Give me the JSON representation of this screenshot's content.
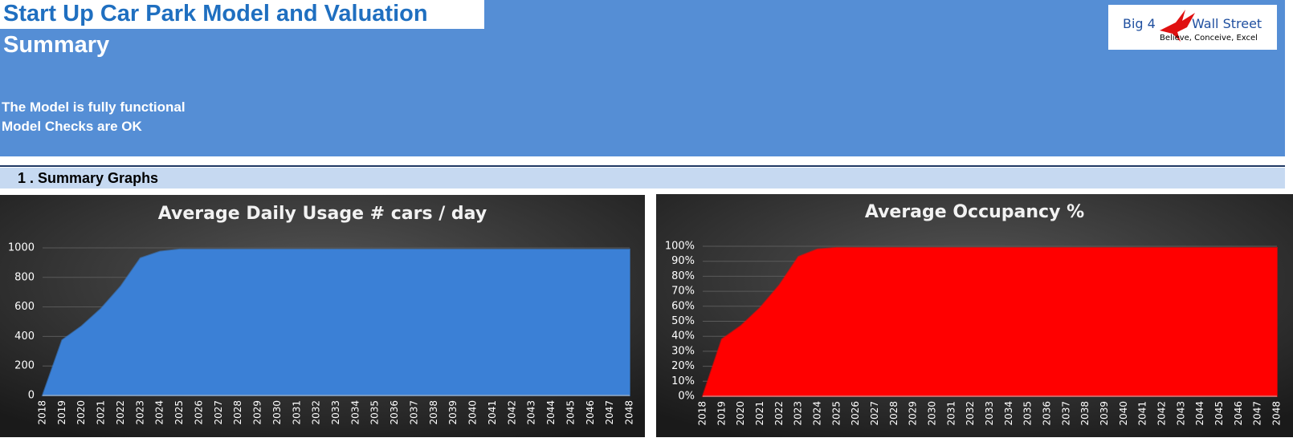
{
  "header": {
    "title": "Start Up Car Park Model and Valuation",
    "subtitle": "Summary",
    "status": [
      "The Model is fully functional",
      "Model Checks are OK"
    ],
    "logo": {
      "brand_left": "Big 4",
      "brand_right": "Wall Street",
      "tagline": "Believe, Conceive, Excel"
    }
  },
  "section": {
    "title": "1 . Summary Graphs"
  },
  "chart_data": [
    {
      "type": "area",
      "title": "Average Daily Usage # cars / day",
      "x": [
        2018,
        2019,
        2020,
        2021,
        2022,
        2023,
        2024,
        2025,
        2026,
        2027,
        2028,
        2029,
        2030,
        2031,
        2032,
        2033,
        2034,
        2035,
        2036,
        2037,
        2038,
        2039,
        2040,
        2041,
        2042,
        2043,
        2044,
        2045,
        2046,
        2047,
        2048
      ],
      "xlim": [
        2018,
        2048
      ],
      "values": [
        0,
        375,
        470,
        590,
        740,
        930,
        975,
        990,
        990,
        990,
        990,
        990,
        990,
        990,
        990,
        990,
        990,
        990,
        990,
        990,
        990,
        990,
        990,
        990,
        990,
        990,
        990,
        990,
        990,
        990,
        990
      ],
      "color": "#3b80d6",
      "ylim": [
        0,
        1000
      ],
      "yticks": [
        0,
        200,
        400,
        600,
        800,
        1000
      ],
      "grid": true
    },
    {
      "type": "area",
      "title": "Average Occupancy %",
      "x": [
        2018,
        2019,
        2020,
        2021,
        2022,
        2023,
        2024,
        2025,
        2026,
        2027,
        2028,
        2029,
        2030,
        2031,
        2032,
        2033,
        2034,
        2035,
        2036,
        2037,
        2038,
        2039,
        2040,
        2041,
        2042,
        2043,
        2044,
        2045,
        2046,
        2047,
        2048
      ],
      "xlim": [
        2018,
        2048
      ],
      "values": [
        0,
        38,
        47,
        59,
        74,
        93,
        98,
        99,
        99,
        99,
        99,
        99,
        99,
        99,
        99,
        99,
        99,
        99,
        99,
        99,
        99,
        99,
        99,
        99,
        99,
        99,
        99,
        99,
        99,
        99,
        99
      ],
      "color": "#ff0000",
      "ylim": [
        0,
        100
      ],
      "yticks": [
        {
          "value": 0,
          "label": "0%"
        },
        {
          "value": 10,
          "label": "10%"
        },
        {
          "value": 20,
          "label": "20%"
        },
        {
          "value": 30,
          "label": "30%"
        },
        {
          "value": 40,
          "label": "40%"
        },
        {
          "value": 50,
          "label": "50%"
        },
        {
          "value": 60,
          "label": "60%"
        },
        {
          "value": 70,
          "label": "70%"
        },
        {
          "value": 80,
          "label": "80%"
        },
        {
          "value": 90,
          "label": "90%"
        },
        {
          "value": 100,
          "label": "100%"
        }
      ],
      "grid": true
    }
  ]
}
